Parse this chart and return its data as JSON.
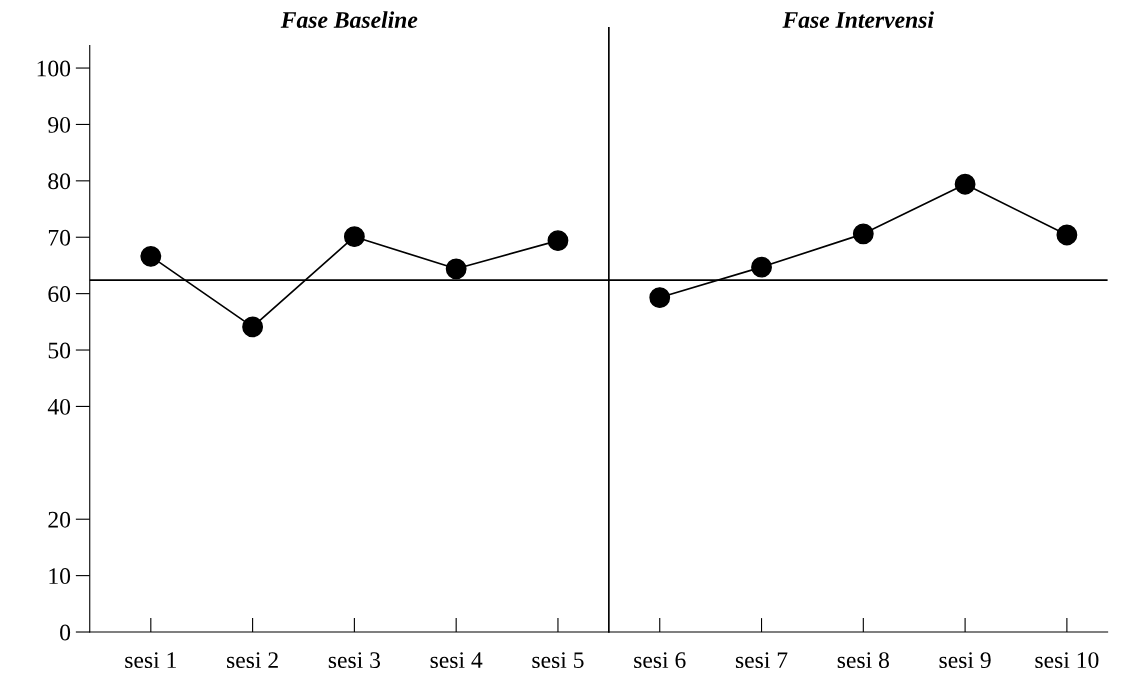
{
  "chart_data": {
    "type": "line",
    "annotations": [
      "Fase Baseline",
      "Fase Intervensi"
    ],
    "categories": [
      "sesi 1",
      "sesi 2",
      "sesi 3",
      "sesi 4",
      "sesi 5",
      "sesi 6",
      "sesi 7",
      "sesi 8",
      "sesi 9",
      "sesi 10"
    ],
    "series": [
      {
        "color": "#000000",
        "values": [
          66.6,
          54.1,
          70.1,
          64.4,
          69.4,
          null,
          null,
          null,
          null,
          null
        ]
      },
      {
        "color": "#000000",
        "values": [
          null,
          null,
          null,
          null,
          null,
          59.3,
          64.7,
          70.6,
          79.4,
          70.4
        ]
      }
    ],
    "marker": "circle",
    "line_style": "solid",
    "grid": false,
    "legend": false,
    "ylim": [
      0,
      104
    ],
    "yticks": [
      0,
      10,
      20,
      40,
      50,
      60,
      70,
      80,
      90,
      100
    ],
    "ref_lines": [
      {
        "axis": "y",
        "value": 62.4,
        "label": null,
        "color": "#000000"
      }
    ]
  }
}
